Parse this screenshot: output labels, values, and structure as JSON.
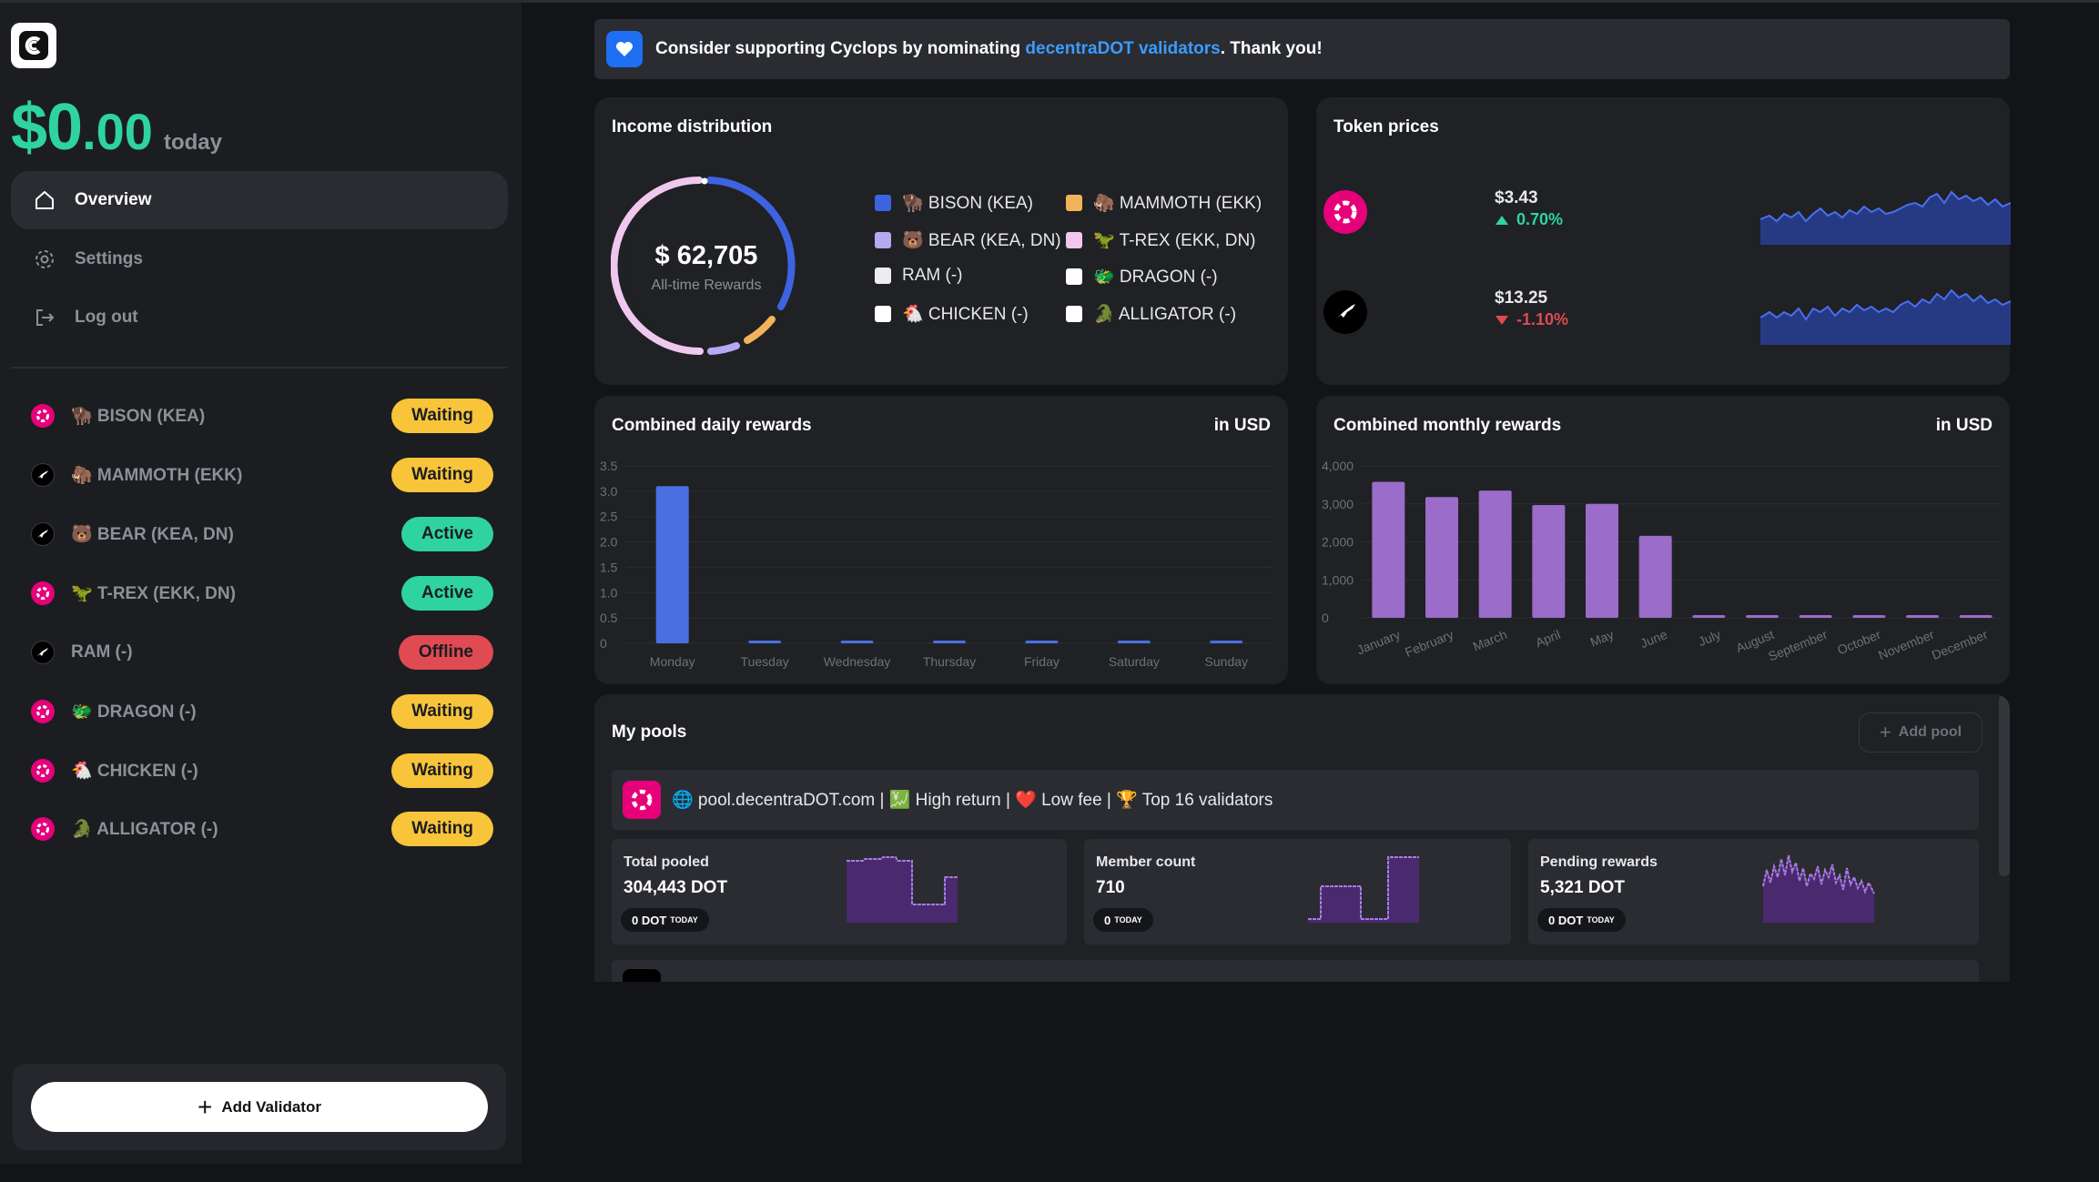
{
  "sidebar": {
    "today_amount": "$0",
    "today_cents": ".00",
    "today_word": "today",
    "nav": [
      {
        "label": "Overview",
        "icon": "home-icon"
      },
      {
        "label": "Settings",
        "icon": "gear-icon"
      },
      {
        "label": "Log out",
        "icon": "logout-icon"
      }
    ],
    "validators": [
      {
        "chain": "polkadot",
        "emoji": "🦬",
        "name": "BISON (KEA)",
        "status": "Waiting"
      },
      {
        "chain": "kusama",
        "emoji": "🦣",
        "name": "MAMMOTH (EKK)",
        "status": "Waiting"
      },
      {
        "chain": "kusama",
        "emoji": "🐻",
        "name": "BEAR (KEA, DN)",
        "status": "Active"
      },
      {
        "chain": "polkadot",
        "emoji": "🦖",
        "name": "T-REX (EKK, DN)",
        "status": "Active"
      },
      {
        "chain": "kusama",
        "emoji": "",
        "name": "RAM (-)",
        "status": "Offline"
      },
      {
        "chain": "polkadot",
        "emoji": "🐲",
        "name": "DRAGON (-)",
        "status": "Waiting"
      },
      {
        "chain": "polkadot",
        "emoji": "🐔",
        "name": "CHICKEN (-)",
        "status": "Waiting"
      },
      {
        "chain": "polkadot",
        "emoji": "🐊",
        "name": "ALLIGATOR (-)",
        "status": "Waiting"
      }
    ],
    "add_validator_label": "Add Validator"
  },
  "banner": {
    "text_before": "Consider supporting Cyclops by nominating ",
    "link": "decentraDOT validators",
    "text_after": ". Thank you!"
  },
  "income": {
    "title": "Income distribution",
    "amount": "$ 62,705",
    "label": "All-time Rewards",
    "legend": [
      {
        "emoji": "🦬",
        "name": "BISON (KEA)",
        "color": "#3d63e0"
      },
      {
        "emoji": "🦣",
        "name": "MAMMOTH (EKK)",
        "color": "#f2b35a"
      },
      {
        "emoji": "🐻",
        "name": "BEAR (KEA, DN)",
        "color": "#b7a8f2"
      },
      {
        "emoji": "🦖",
        "name": "T-REX (EKK, DN)",
        "color": "#f0c8ee"
      },
      {
        "emoji": "",
        "name": "RAM (-)",
        "color": "#ededed"
      },
      {
        "emoji": "🐲",
        "name": "DRAGON (-)",
        "color": "#ffffff"
      },
      {
        "emoji": "🐔",
        "name": "CHICKEN (-)",
        "color": "#ffffff"
      },
      {
        "emoji": "🐊",
        "name": "ALLIGATOR (-)",
        "color": "#ffffff"
      }
    ]
  },
  "tokens": {
    "title": "Token prices",
    "items": [
      {
        "icon": "polkadot-icon",
        "price": "$3.43",
        "change": "0.70%",
        "direction": "up"
      },
      {
        "icon": "kusama-icon",
        "price": "$13.25",
        "change": "-1.10%",
        "direction": "down"
      }
    ]
  },
  "daily": {
    "title": "Combined daily rewards",
    "unit": "in USD"
  },
  "monthly": {
    "title": "Combined monthly rewards",
    "unit": "in USD"
  },
  "chart_data": [
    {
      "type": "bar",
      "title": "Combined daily rewards",
      "ylabel": "in USD",
      "categories": [
        "Monday",
        "Tuesday",
        "Wednesday",
        "Thursday",
        "Friday",
        "Saturday",
        "Sunday"
      ],
      "values": [
        3.1,
        0.05,
        0.05,
        0.05,
        0.05,
        0.05,
        0.05
      ],
      "yticks": [
        "0",
        "0.5",
        "1.0",
        "1.5",
        "2.0",
        "2.5",
        "3.0",
        "3.5"
      ],
      "ylim": [
        0,
        3.5
      ],
      "grid": true,
      "color": "#4a6fe0"
    },
    {
      "type": "bar",
      "title": "Combined monthly rewards",
      "ylabel": "in USD",
      "categories": [
        "January",
        "February",
        "March",
        "April",
        "May",
        "June",
        "July",
        "August",
        "September",
        "October",
        "November",
        "December"
      ],
      "values": [
        3580,
        3180,
        3350,
        2970,
        3000,
        2160,
        10,
        10,
        10,
        10,
        10,
        10
      ],
      "yticks": [
        "0",
        "1,000",
        "2,000",
        "3,000",
        "4,000"
      ],
      "ylim": [
        0,
        4000
      ],
      "grid": true,
      "color": "#9b6cc9"
    }
  ],
  "pools": {
    "title": "My pools",
    "add_label": "Add pool",
    "items": [
      {
        "header": "🌐 pool.decentraDOT.com | 💹 High return | ❤️ Low fee | 🏆 Top 16 validators",
        "stats": [
          {
            "label": "Total pooled",
            "value": "304,443 DOT",
            "pill": "0 DOT",
            "pill_suffix": "TODAY"
          },
          {
            "label": "Member count",
            "value": "710",
            "pill": "0",
            "pill_suffix": "TODAY"
          },
          {
            "label": "Pending rewards",
            "value": "5,321 DOT",
            "pill": "0 DOT",
            "pill_suffix": "TODAY"
          }
        ]
      }
    ]
  }
}
